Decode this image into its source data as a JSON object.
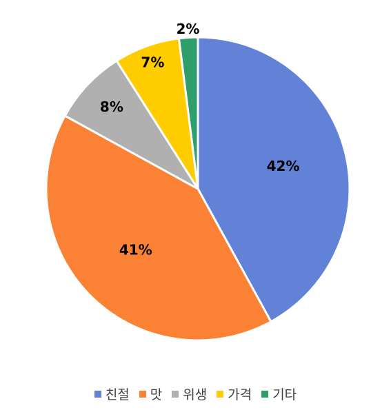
{
  "chart_data": {
    "type": "pie",
    "title": "",
    "legend_position": "bottom",
    "slices": [
      {
        "name": "친절",
        "value": 42,
        "label": "42%",
        "color": "#6182D6"
      },
      {
        "name": "맛",
        "value": 41,
        "label": "41%",
        "color": "#FB8235"
      },
      {
        "name": "위생",
        "value": 8,
        "label": "8%",
        "color": "#B0B0B0"
      },
      {
        "name": "가격",
        "value": 7,
        "label": "7%",
        "color": "#FFCC00"
      },
      {
        "name": "기타",
        "value": 2,
        "label": "2%",
        "color": "#2E9E6B"
      }
    ]
  }
}
